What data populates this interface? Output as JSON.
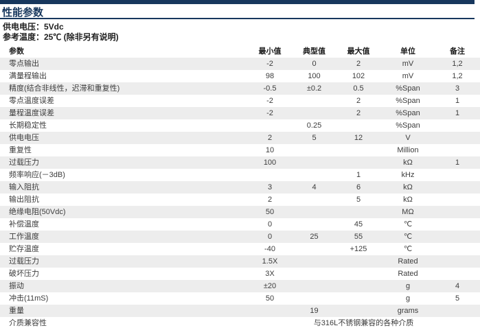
{
  "page": {
    "title": "性能参数",
    "info_lines": [
      "供电电压：5Vdc",
      "参考温度：25℃ (除非另有说明)"
    ]
  },
  "colors": {
    "accent_navy": "#17375d",
    "row_stripe": "#ededed",
    "body_text": "#3c3c3c"
  },
  "table": {
    "headers": [
      "参数",
      "最小值",
      "典型值",
      "最大值",
      "单位",
      "备注"
    ],
    "rows": [
      {
        "cells": [
          "零点输出",
          "-2",
          "0",
          "2",
          "mV",
          "1,2"
        ]
      },
      {
        "cells": [
          "满量程输出",
          "98",
          "100",
          "102",
          "mV",
          "1,2"
        ]
      },
      {
        "cells": [
          "精度(结合非线性，迟滞和重复性)",
          "-0.5",
          "±0.2",
          "0.5",
          "%Span",
          "3"
        ]
      },
      {
        "cells": [
          "零点温度误差",
          "-2",
          "",
          "2",
          "%Span",
          "1"
        ]
      },
      {
        "cells": [
          "量程温度误差",
          "-2",
          "",
          "2",
          "%Span",
          "1"
        ]
      },
      {
        "cells": [
          "长期稳定性",
          "",
          "0.25",
          "",
          "%Span",
          ""
        ]
      },
      {
        "cells": [
          "供电电压",
          "2",
          "5",
          "12",
          "V",
          ""
        ]
      },
      {
        "cells": [
          "重复性",
          "10",
          "",
          "",
          "Million",
          ""
        ]
      },
      {
        "cells": [
          "过载压力",
          "100",
          "",
          "",
          "kΩ",
          "1"
        ]
      },
      {
        "cells": [
          "频率响应(－3dB)",
          "",
          "",
          "1",
          "kHz",
          ""
        ]
      },
      {
        "cells": [
          "输入阻抗",
          "3",
          "4",
          "6",
          "kΩ",
          ""
        ]
      },
      {
        "cells": [
          "输出阻抗",
          "2",
          "",
          "5",
          "kΩ",
          ""
        ]
      },
      {
        "cells": [
          "绝缘电阻(50Vdc)",
          "50",
          "",
          "",
          "MΩ",
          ""
        ]
      },
      {
        "cells": [
          "补偿温度",
          "0",
          "",
          "45",
          "℃",
          ""
        ]
      },
      {
        "cells": [
          "工作温度",
          "0",
          "25",
          "55",
          "℃",
          ""
        ]
      },
      {
        "cells": [
          "贮存温度",
          "-40",
          "",
          "+125",
          "℃",
          ""
        ]
      },
      {
        "cells": [
          "过载压力",
          "1.5X",
          "",
          "",
          "Rated",
          ""
        ]
      },
      {
        "cells": [
          "破坏压力",
          "3X",
          "",
          "",
          "Rated",
          ""
        ]
      },
      {
        "cells": [
          "振动",
          "±20",
          "",
          "",
          "g",
          "4"
        ]
      },
      {
        "cells": [
          "冲击(11mS)",
          "50",
          "",
          "",
          "g",
          "5"
        ]
      },
      {
        "cells": [
          "重量",
          "",
          "19",
          "",
          "grams",
          ""
        ]
      },
      {
        "cells": [
          "介质兼容性"
        ],
        "span_text": "与316L不锈钢兼容的各种介质"
      }
    ]
  }
}
